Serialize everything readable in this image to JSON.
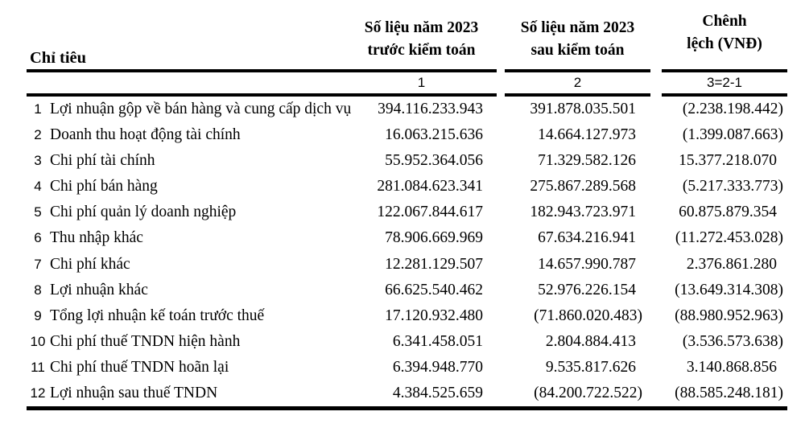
{
  "colors": {
    "background": "#ffffff",
    "text": "#000000",
    "rule": "#000000"
  },
  "table": {
    "criteria_header": "Chỉ tiêu",
    "columns": {
      "before": {
        "line1": "Số liệu năm 2023",
        "line2": "trước kiểm toán",
        "index": "1"
      },
      "after": {
        "line1": "Số liệu năm 2023",
        "line2": "sau kiểm toán",
        "index": "2"
      },
      "diff": {
        "line1": "Chênh",
        "line2": "lệch (VNĐ)",
        "index": "3=2-1"
      }
    },
    "rows": [
      {
        "no": "1",
        "label": "Lợi nhuận gộp về bán hàng và cung cấp dịch vụ",
        "before": "394.116.233.943",
        "after": "391.878.035.501",
        "diff": "(2.238.198.442)"
      },
      {
        "no": "2",
        "label": "Doanh thu hoạt động tài chính",
        "before": "16.063.215.636",
        "after": "14.664.127.973",
        "diff": "(1.399.087.663)"
      },
      {
        "no": "3",
        "label": "Chi phí tài chính",
        "before": "55.952.364.056",
        "after": "71.329.582.126",
        "diff": "15.377.218.070"
      },
      {
        "no": "4",
        "label": "Chi phí bán hàng",
        "before": "281.084.623.341",
        "after": "275.867.289.568",
        "diff": "(5.217.333.773)"
      },
      {
        "no": "5",
        "label": "Chi phí quản lý doanh nghiệp",
        "before": "122.067.844.617",
        "after": "182.943.723.971",
        "diff": "60.875.879.354"
      },
      {
        "no": "6",
        "label": "Thu nhập khác",
        "before": "78.906.669.969",
        "after": "67.634.216.941",
        "diff": "(11.272.453.028)"
      },
      {
        "no": "7",
        "label": "Chi phí khác",
        "before": "12.281.129.507",
        "after": "14.657.990.787",
        "diff": "2.376.861.280"
      },
      {
        "no": "8",
        "label": "Lợi nhuận khác",
        "before": "66.625.540.462",
        "after": "52.976.226.154",
        "diff": "(13.649.314.308)"
      },
      {
        "no": "9",
        "label": "Tổng lợi nhuận kế toán trước thuế",
        "before": "17.120.932.480",
        "after": "(71.860.020.483)",
        "diff": "(88.980.952.963)"
      },
      {
        "no": "10",
        "label": "Chi phí thuế TNDN hiện hành",
        "before": "6.341.458.051",
        "after": "2.804.884.413",
        "diff": "(3.536.573.638)"
      },
      {
        "no": "11",
        "label": "Chi phí thuế TNDN hoãn lại",
        "before": "6.394.948.770",
        "after": "9.535.817.626",
        "diff": "3.140.868.856"
      },
      {
        "no": "12",
        "label": "Lợi nhuận sau thuế TNDN",
        "before": "4.384.525.659",
        "after": "(84.200.722.522)",
        "diff": "(88.585.248.181)"
      }
    ]
  }
}
